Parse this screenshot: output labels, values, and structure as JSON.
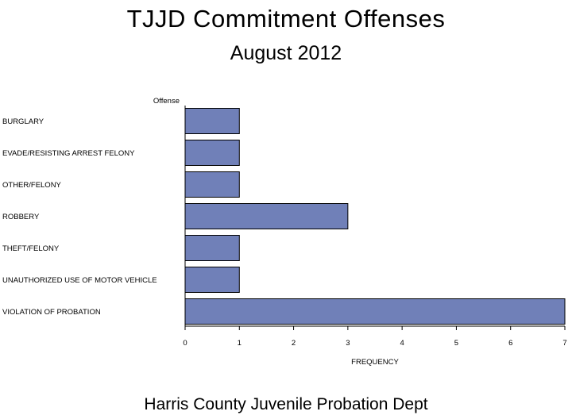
{
  "chart_data": {
    "type": "bar",
    "orientation": "horizontal",
    "title": "TJJD Commitment Offenses",
    "subtitle": "August 2012",
    "footnote": "Harris County Juvenile Probation Dept",
    "ylabel": "Offense",
    "xlabel": "FREQUENCY",
    "categories": [
      "BURGLARY",
      "EVADE/RESISTING ARREST FELONY",
      "OTHER/FELONY",
      "ROBBERY",
      "THEFT/FELONY",
      "UNAUTHORIZED USE OF MOTOR VEHICLE",
      "VIOLATION OF PROBATION"
    ],
    "values": [
      1,
      1,
      1,
      3,
      1,
      1,
      7
    ],
    "xlim": [
      0,
      7
    ],
    "xticks": [
      "0",
      "1",
      "2",
      "3",
      "4",
      "5",
      "6",
      "7"
    ],
    "bar_color": "#7080b8",
    "grid": false
  }
}
